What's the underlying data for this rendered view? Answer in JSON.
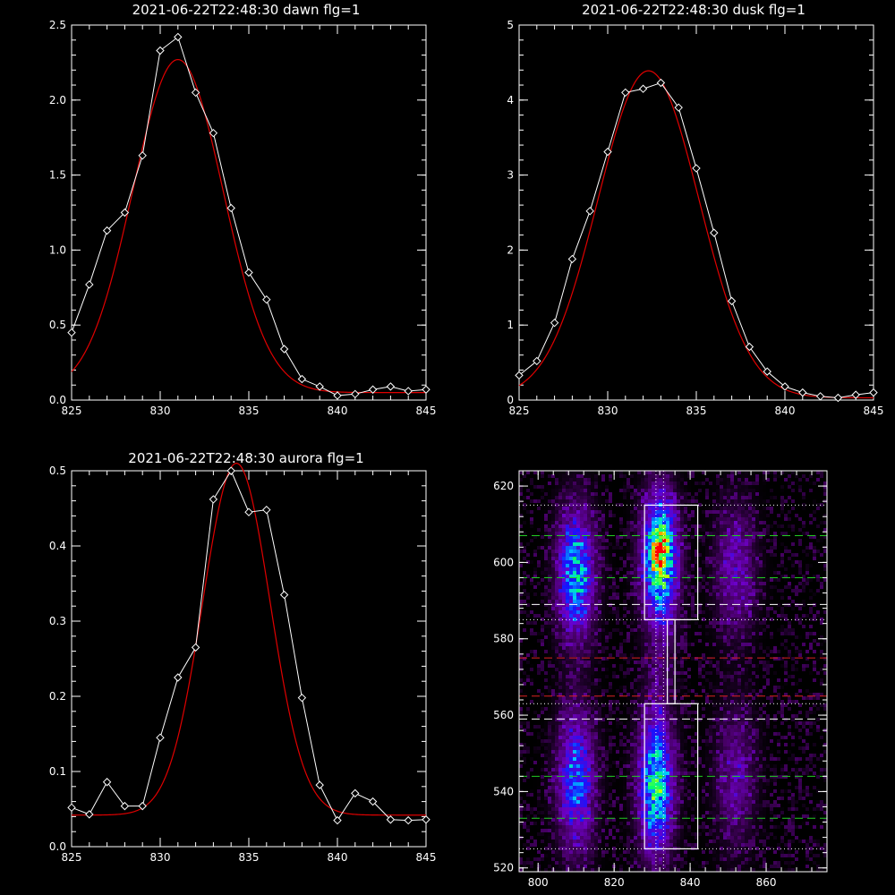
{
  "colors": {
    "background": "#000000",
    "axis": "#ffffff",
    "data": "#ffffff",
    "fit": "#e00000",
    "green_line": "#22cc22",
    "red_line": "#dd2222",
    "white_line": "#ffffff"
  },
  "chart_data": [
    {
      "type": "line",
      "title": "2021-06-22T22:48:30 dawn flg=1",
      "xlim": [
        825,
        845
      ],
      "ylim": [
        0,
        2.5
      ],
      "xticks": [
        "825",
        "830",
        "835",
        "840",
        "845"
      ],
      "yticks": [
        "0.0",
        "0.5",
        "1.0",
        "1.5",
        "2.0",
        "2.5"
      ],
      "xtick_values": [
        825,
        830,
        835,
        840,
        845
      ],
      "ytick_values": [
        0,
        0.5,
        1.0,
        1.5,
        2.0,
        2.5
      ],
      "series": [
        {
          "role": "data",
          "marker": "diamond",
          "x": [
            825,
            826,
            827,
            828,
            829,
            830,
            831,
            832,
            833,
            834,
            835,
            836,
            837,
            838,
            839,
            840,
            841,
            842,
            843,
            844,
            845
          ],
          "y": [
            0.45,
            0.77,
            1.13,
            1.25,
            1.63,
            2.33,
            2.42,
            2.05,
            1.78,
            1.28,
            0.85,
            0.67,
            0.34,
            0.14,
            0.09,
            0.03,
            0.04,
            0.07,
            0.09,
            0.06,
            0.07
          ]
        },
        {
          "role": "fit",
          "model": "gaussian",
          "center": 831.0,
          "amplitude": 2.22,
          "sigma": 2.55,
          "offset": 0.05
        }
      ]
    },
    {
      "type": "line",
      "title": "2021-06-22T22:48:30 dusk flg=1",
      "xlim": [
        825,
        845
      ],
      "ylim": [
        0,
        5
      ],
      "xticks": [
        "825",
        "830",
        "835",
        "840",
        "845"
      ],
      "yticks": [
        "0",
        "1",
        "2",
        "3",
        "4",
        "5"
      ],
      "xtick_values": [
        825,
        830,
        835,
        840,
        845
      ],
      "ytick_values": [
        0,
        1,
        2,
        3,
        4,
        5
      ],
      "series": [
        {
          "role": "data",
          "marker": "diamond",
          "x": [
            825,
            826,
            827,
            828,
            829,
            830,
            831,
            832,
            833,
            834,
            835,
            836,
            837,
            838,
            839,
            840,
            841,
            842,
            843,
            844,
            845
          ],
          "y": [
            0.33,
            0.52,
            1.03,
            1.88,
            2.52,
            3.31,
            4.1,
            4.15,
            4.23,
            3.9,
            3.09,
            2.23,
            1.32,
            0.71,
            0.38,
            0.18,
            0.1,
            0.05,
            0.03,
            0.07,
            0.1
          ]
        },
        {
          "role": "fit",
          "model": "gaussian",
          "center": 832.3,
          "amplitude": 4.36,
          "sigma": 2.85,
          "offset": 0.03
        }
      ]
    },
    {
      "type": "line",
      "title": "2021-06-22T22:48:30 aurora flg=1",
      "xlim": [
        825,
        845
      ],
      "ylim": [
        0,
        0.5
      ],
      "xticks": [
        "825",
        "830",
        "835",
        "840",
        "845"
      ],
      "yticks": [
        "0.0",
        "0.1",
        "0.2",
        "0.3",
        "0.4",
        "0.5"
      ],
      "xtick_values": [
        825,
        830,
        835,
        840,
        845
      ],
      "ytick_values": [
        0,
        0.1,
        0.2,
        0.3,
        0.4,
        0.5
      ],
      "series": [
        {
          "role": "data",
          "marker": "diamond",
          "x": [
            825,
            826,
            827,
            828,
            829,
            830,
            831,
            832,
            833,
            834,
            835,
            836,
            837,
            838,
            839,
            840,
            841,
            842,
            843,
            844,
            845
          ],
          "y": [
            0.052,
            0.043,
            0.086,
            0.054,
            0.054,
            0.145,
            0.225,
            0.265,
            0.462,
            0.5,
            0.445,
            0.448,
            0.335,
            0.198,
            0.082,
            0.035,
            0.071,
            0.06,
            0.036,
            0.035,
            0.036
          ]
        },
        {
          "role": "fit",
          "model": "gaussian",
          "center": 834.3,
          "amplitude": 0.468,
          "sigma": 1.9,
          "offset": 0.042
        }
      ]
    },
    {
      "type": "heatmap",
      "title": "",
      "xlim": [
        795,
        876
      ],
      "ylim": [
        519,
        624
      ],
      "xticks": [
        "800",
        "820",
        "840",
        "860"
      ],
      "yticks": [
        "520",
        "540",
        "560",
        "580",
        "600",
        "620"
      ],
      "xtick_values": [
        800,
        820,
        840,
        860
      ],
      "ytick_values": [
        520,
        540,
        560,
        580,
        600,
        620
      ],
      "colormap": "rainbow",
      "blobs": [
        {
          "cx": 810,
          "cy": 597,
          "sx": 3.2,
          "sy": 11,
          "amp": 0.5
        },
        {
          "cx": 832,
          "cy": 601,
          "sx": 3.0,
          "sy": 11,
          "amp": 0.72
        },
        {
          "cx": 832,
          "cy": 604,
          "sx": 1.6,
          "sy": 2.2,
          "amp": 0.35
        },
        {
          "cx": 852,
          "cy": 598,
          "sx": 3.5,
          "sy": 11,
          "amp": 0.22
        },
        {
          "cx": 810,
          "cy": 543,
          "sx": 3.2,
          "sy": 12,
          "amp": 0.4
        },
        {
          "cx": 831,
          "cy": 542,
          "sx": 3.0,
          "sy": 12,
          "amp": 0.58
        },
        {
          "cx": 852,
          "cy": 544,
          "sx": 3.5,
          "sy": 12,
          "amp": 0.18
        },
        {
          "cx": 832,
          "cy": 572,
          "sx": 2.5,
          "sy": 9,
          "amp": 0.07
        }
      ],
      "rectangles": [
        {
          "x0": 828,
          "x1": 842,
          "y0": 585,
          "y1": 615
        },
        {
          "x0": 834,
          "x1": 836,
          "y0": 563,
          "y1": 585
        },
        {
          "x0": 828,
          "x1": 842,
          "y0": 525,
          "y1": 563
        }
      ],
      "hlines": [
        {
          "y": 615,
          "color": "white_line",
          "style": "dotted"
        },
        {
          "y": 607,
          "color": "green_line",
          "style": "dashed"
        },
        {
          "y": 596,
          "color": "green_line",
          "style": "dashed"
        },
        {
          "y": 589,
          "color": "white_line",
          "style": "dashed"
        },
        {
          "y": 585,
          "color": "white_line",
          "style": "dotted"
        },
        {
          "y": 575,
          "color": "red_line",
          "style": "dashed"
        },
        {
          "y": 565,
          "color": "red_line",
          "style": "dashed"
        },
        {
          "y": 563,
          "color": "white_line",
          "style": "dotted"
        },
        {
          "y": 559,
          "color": "white_line",
          "style": "dashed"
        },
        {
          "y": 544,
          "color": "green_line",
          "style": "dashed"
        },
        {
          "y": 533,
          "color": "green_line",
          "style": "dashed"
        },
        {
          "y": 525,
          "color": "white_line",
          "style": "dotted"
        }
      ],
      "vlines": [
        {
          "x": 831,
          "color": "white_line",
          "style": "dotted"
        },
        {
          "x": 833,
          "color": "white_line",
          "style": "dotted"
        }
      ]
    }
  ]
}
